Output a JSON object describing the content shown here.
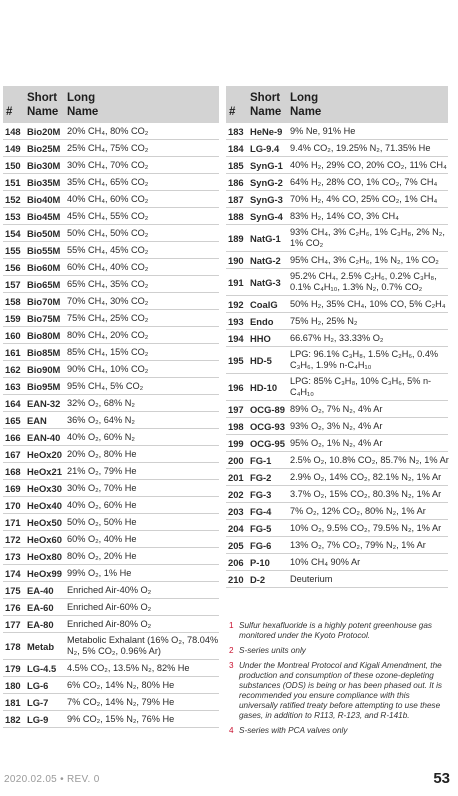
{
  "headers": {
    "num": "#",
    "short_1": "Short",
    "short_2": "Name",
    "long_1": "Long",
    "long_2": "Name"
  },
  "left_rows": [
    {
      "num": "148",
      "short": "Bio20M",
      "long": "20% CH₄, 80% CO₂"
    },
    {
      "num": "149",
      "short": "Bio25M",
      "long": "25% CH₄, 75% CO₂"
    },
    {
      "num": "150",
      "short": "Bio30M",
      "long": "30% CH₄, 70% CO₂"
    },
    {
      "num": "151",
      "short": "Bio35M",
      "long": "35% CH₄, 65% CO₂"
    },
    {
      "num": "152",
      "short": "Bio40M",
      "long": "40% CH₄, 60% CO₂"
    },
    {
      "num": "153",
      "short": "Bio45M",
      "long": "45% CH₄, 55% CO₂"
    },
    {
      "num": "154",
      "short": "Bio50M",
      "long": "50% CH₄, 50% CO₂"
    },
    {
      "num": "155",
      "short": "Bio55M",
      "long": "55% CH₄, 45% CO₂"
    },
    {
      "num": "156",
      "short": "Bio60M",
      "long": "60% CH₄, 40% CO₂"
    },
    {
      "num": "157",
      "short": "Bio65M",
      "long": "65% CH₄, 35% CO₂"
    },
    {
      "num": "158",
      "short": "Bio70M",
      "long": "70% CH₄, 30% CO₂"
    },
    {
      "num": "159",
      "short": "Bio75M",
      "long": "75% CH₄, 25% CO₂"
    },
    {
      "num": "160",
      "short": "Bio80M",
      "long": "80% CH₄, 20% CO₂"
    },
    {
      "num": "161",
      "short": "Bio85M",
      "long": "85% CH₄, 15% CO₂"
    },
    {
      "num": "162",
      "short": "Bio90M",
      "long": "90% CH₄, 10% CO₂"
    },
    {
      "num": "163",
      "short": "Bio95M",
      "long": "95% CH₄, 5% CO₂"
    },
    {
      "num": "164",
      "short": "EAN-32",
      "long": "32% O₂, 68% N₂"
    },
    {
      "num": "165",
      "short": "EAN",
      "long": "36% O₂, 64% N₂"
    },
    {
      "num": "166",
      "short": "EAN-40",
      "long": "40% O₂, 60% N₂"
    },
    {
      "num": "167",
      "short": "HeOx20",
      "long": "20% O₂, 80% He"
    },
    {
      "num": "168",
      "short": "HeOx21",
      "long": "21% O₂, 79% He"
    },
    {
      "num": "169",
      "short": "HeOx30",
      "long": "30% O₂, 70% He"
    },
    {
      "num": "170",
      "short": "HeOx40",
      "long": "40% O₂, 60% He"
    },
    {
      "num": "171",
      "short": "HeOx50",
      "long": "50% O₂, 50% He"
    },
    {
      "num": "172",
      "short": "HeOx60",
      "long": "60% O₂, 40% He"
    },
    {
      "num": "173",
      "short": "HeOx80",
      "long": "80% O₂, 20% He"
    },
    {
      "num": "174",
      "short": "HeOx99",
      "long": "99% O₂, 1% He"
    },
    {
      "num": "175",
      "short": "EA-40",
      "long": "Enriched Air-40% O₂"
    },
    {
      "num": "176",
      "short": "EA-60",
      "long": "Enriched Air-60% O₂"
    },
    {
      "num": "177",
      "short": "EA-80",
      "long": "Enriched Air-80% O₂"
    },
    {
      "num": "178",
      "short": "Metab",
      "long": "Metabolic Exhalant (16% O₂, 78.04% N₂, 5% CO₂, 0.96% Ar)",
      "tall": true
    },
    {
      "num": "179",
      "short": "LG-4.5",
      "long": "4.5% CO₂, 13.5% N₂, 82% He"
    },
    {
      "num": "180",
      "short": "LG-6",
      "long": "6% CO₂, 14% N₂, 80% He"
    },
    {
      "num": "181",
      "short": "LG-7",
      "long": "7% CO₂, 14% N₂, 79% He"
    },
    {
      "num": "182",
      "short": "LG-9",
      "long": "9% CO₂, 15% N₂, 76% He"
    }
  ],
  "right_rows": [
    {
      "num": "183",
      "short": "HeNe-9",
      "long": "9% Ne, 91% He"
    },
    {
      "num": "184",
      "short": "LG-9.4",
      "long": "9.4% CO₂, 19.25% N₂, 71.35% He"
    },
    {
      "num": "185",
      "short": "SynG-1",
      "long": "40% H₂, 29% CO, 20% CO₂, 11% CH₄"
    },
    {
      "num": "186",
      "short": "SynG-2",
      "long": "64% H₂, 28% CO, 1% CO₂, 7% CH₄"
    },
    {
      "num": "187",
      "short": "SynG-3",
      "long": "70% H₂, 4% CO, 25% CO₂, 1% CH₄"
    },
    {
      "num": "188",
      "short": "SynG-4",
      "long": "83% H₂, 14% CO, 3% CH₄"
    },
    {
      "num": "189",
      "short": "NatG-1",
      "long": "93% CH₄, 3% C₂H₆, 1% C₃H₈, 2% N₂, 1% CO₂",
      "tall": true
    },
    {
      "num": "190",
      "short": "NatG-2",
      "long": "95% CH₄, 3% C₂H₆, 1% N₂, 1% CO₂"
    },
    {
      "num": "191",
      "short": "NatG-3",
      "long": "95.2% CH₄, 2.5% C₂H₆, 0.2% C₃H₈, 0.1% C₄H₁₀, 1.3% N₂, 0.7% CO₂",
      "tall": true
    },
    {
      "num": "192",
      "short": "CoalG",
      "long": "50% H₂, 35% CH₄, 10% CO, 5% C₂H₄"
    },
    {
      "num": "193",
      "short": "Endo",
      "long": "75% H₂, 25% N₂"
    },
    {
      "num": "194",
      "short": "HHO",
      "long": "66.67% H₂, 33.33% O₂"
    },
    {
      "num": "195",
      "short": "HD-5",
      "long": "LPG: 96.1% C₃H₈, 1.5% C₂H₆, 0.4% C₃H₆, 1.9% n-C₄H₁₀",
      "tall": true
    },
    {
      "num": "196",
      "short": "HD-10",
      "long": "LPG: 85% C₃H₈, 10% C₃H₆, 5% n-C₄H₁₀",
      "tall": true
    },
    {
      "num": "197",
      "short": "OCG-89",
      "long": "89% O₂, 7% N₂, 4% Ar"
    },
    {
      "num": "198",
      "short": "OCG-93",
      "long": "93% O₂, 3% N₂, 4% Ar"
    },
    {
      "num": "199",
      "short": "OCG-95",
      "long": "95% O₂, 1% N₂, 4% Ar"
    },
    {
      "num": "200",
      "short": "FG-1",
      "long": "2.5% O₂, 10.8% CO₂, 85.7% N₂, 1% Ar"
    },
    {
      "num": "201",
      "short": "FG-2",
      "long": "2.9% O₂, 14% CO₂, 82.1% N₂, 1% Ar"
    },
    {
      "num": "202",
      "short": "FG-3",
      "long": "3.7% O₂, 15% CO₂, 80.3% N₂, 1% Ar"
    },
    {
      "num": "203",
      "short": "FG-4",
      "long": "7% O₂, 12% CO₂, 80% N₂, 1% Ar"
    },
    {
      "num": "204",
      "short": "FG-5",
      "long": "10% O₂, 9.5% CO₂, 79.5% N₂, 1% Ar"
    },
    {
      "num": "205",
      "short": "FG-6",
      "long": "13% O₂, 7% CO₂, 79% N₂, 1% Ar"
    },
    {
      "num": "206",
      "short": "P-10",
      "long": "10% CH₄ 90% Ar"
    },
    {
      "num": "210",
      "short": "D-2",
      "long": "Deuterium"
    }
  ],
  "notes": [
    {
      "num": "1",
      "text": "Sulfur hexafluoride is a highly potent greenhouse gas monitored under the Kyoto Protocol."
    },
    {
      "num": "2",
      "text": "S-series units only"
    },
    {
      "num": "3",
      "text": "Under the Montreal Protocol and Kigali Amendment, the production and consumption of these ozone-depleting substances (ODS) is being or has been phased out. It is recommended you ensure compliance with this universally ratified treaty before attempting to use these gases, in addition to R113, R-123, and R-141b."
    },
    {
      "num": "4",
      "text": "S-series with PCA valves only"
    }
  ],
  "footer": {
    "date_rev": "2020.02.05 • REV. 0",
    "page": "53"
  }
}
